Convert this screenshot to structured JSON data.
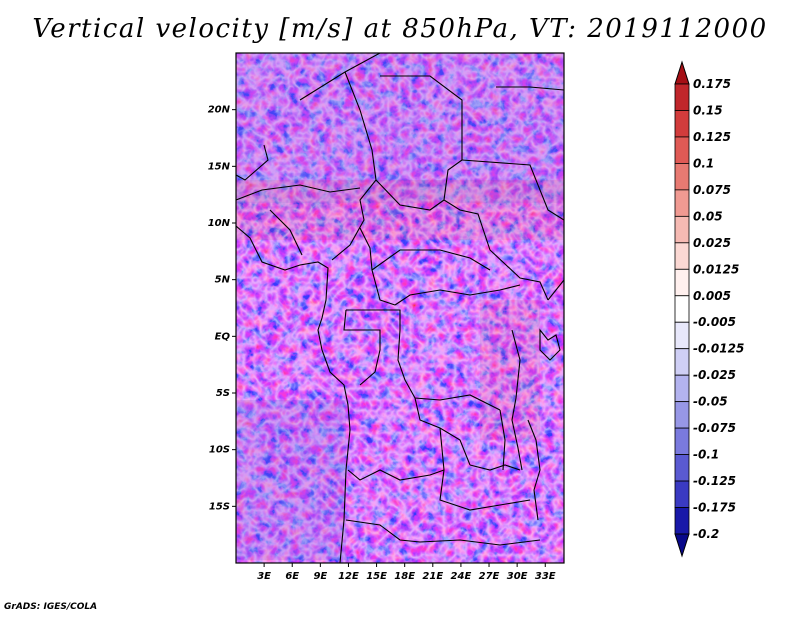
{
  "title": "Vertical velocity [m/s] at 850hPa, VT: 2019112000",
  "credit": "GrADS: IGES/COLA",
  "map": {
    "lon_range": [
      0,
      35
    ],
    "lat_range": [
      -20,
      25
    ],
    "lat_labels": [
      {
        "lat": 20,
        "text": "20N"
      },
      {
        "lat": 15,
        "text": "15N"
      },
      {
        "lat": 10,
        "text": "10N"
      },
      {
        "lat": 5,
        "text": "5N"
      },
      {
        "lat": 0,
        "text": "EQ"
      },
      {
        "lat": -5,
        "text": "5S"
      },
      {
        "lat": -10,
        "text": "10S"
      },
      {
        "lat": -15,
        "text": "15S"
      }
    ],
    "lon_labels": [
      {
        "lon": 3,
        "text": "3E"
      },
      {
        "lon": 6,
        "text": "6E"
      },
      {
        "lon": 9,
        "text": "9E"
      },
      {
        "lon": 12,
        "text": "12E"
      },
      {
        "lon": 15,
        "text": "15E"
      },
      {
        "lon": 18,
        "text": "18E"
      },
      {
        "lon": 21,
        "text": "21E"
      },
      {
        "lon": 24,
        "text": "24E"
      },
      {
        "lon": 27,
        "text": "27E"
      },
      {
        "lon": 30,
        "text": "30E"
      },
      {
        "lon": 33,
        "text": "33E"
      }
    ]
  },
  "colorbar": {
    "labels": [
      "0.175",
      "0.15",
      "0.125",
      "0.1",
      "0.075",
      "0.05",
      "0.025",
      "0.0125",
      "0.005",
      "-0.005",
      "-0.0125",
      "-0.025",
      "-0.05",
      "-0.075",
      "-0.1",
      "-0.125",
      "-0.175",
      "-0.2"
    ],
    "colors": [
      "#a50f15",
      "#c0262b",
      "#d23c3c",
      "#e05a55",
      "#e87a72",
      "#f09a92",
      "#f6bab3",
      "#fbd8d3",
      "#fff0ee",
      "#ffffff",
      "#e8e8fb",
      "#cfcff5",
      "#b3b3ef",
      "#9797e6",
      "#7a7ade",
      "#5a5ad2",
      "#3a3ac2",
      "#1818a8",
      "#08088a"
    ]
  }
}
